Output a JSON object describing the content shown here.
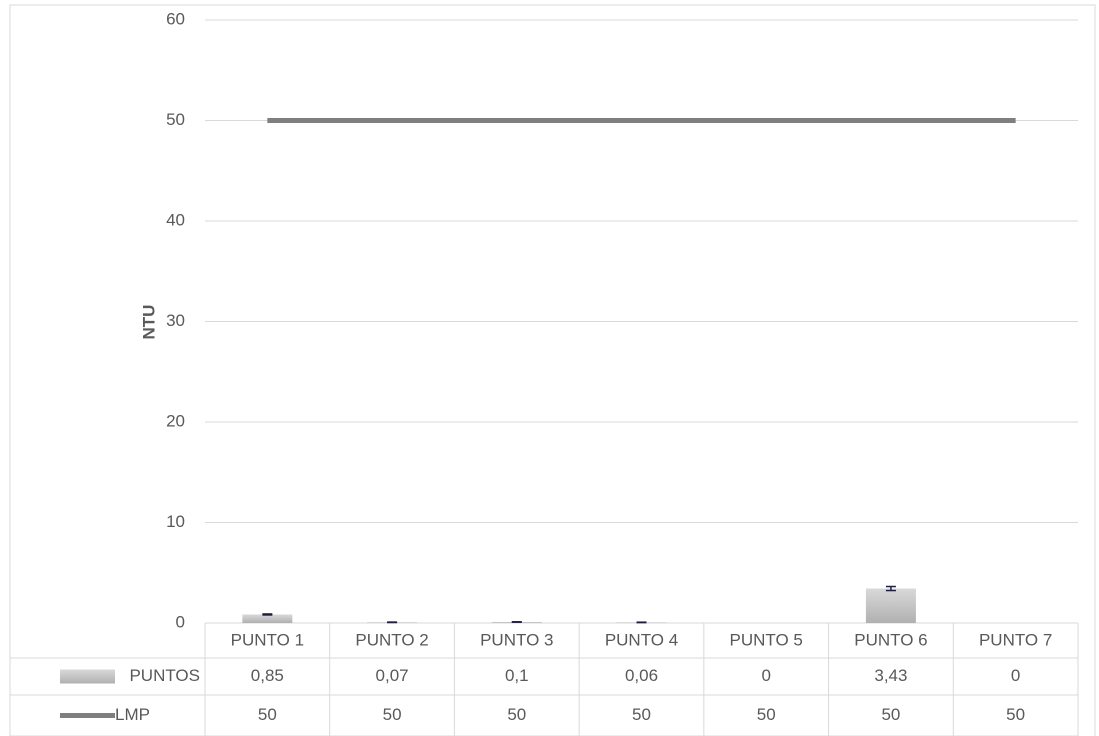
{
  "chart_data": {
    "type": "bar",
    "y_label": "NTU",
    "categories": [
      "PUNTO 1",
      "PUNTO 2",
      "PUNTO 3",
      "PUNTO 4",
      "PUNTO 5",
      "PUNTO 6",
      "PUNTO 7"
    ],
    "series": [
      {
        "name": "PUNTOS",
        "type": "bar",
        "color": "#bfbfbf",
        "values": [
          0.85,
          0.07,
          0.1,
          0.06,
          0,
          3.43,
          0
        ],
        "value_labels": [
          "0,85",
          "0,07",
          "0,1",
          "0,06",
          "0",
          "3,43",
          "0"
        ],
        "errors": [
          0.05,
          0.02,
          0.02,
          0.02,
          0,
          0.2,
          0
        ]
      },
      {
        "name": "LMP",
        "type": "line",
        "color": "#7f7f7f",
        "values": [
          50,
          50,
          50,
          50,
          50,
          50,
          50
        ]
      }
    ],
    "ylim": [
      0,
      60
    ],
    "yticks": [
      0,
      10,
      20,
      30,
      40,
      50,
      60
    ],
    "grid": true,
    "data_table": true
  }
}
